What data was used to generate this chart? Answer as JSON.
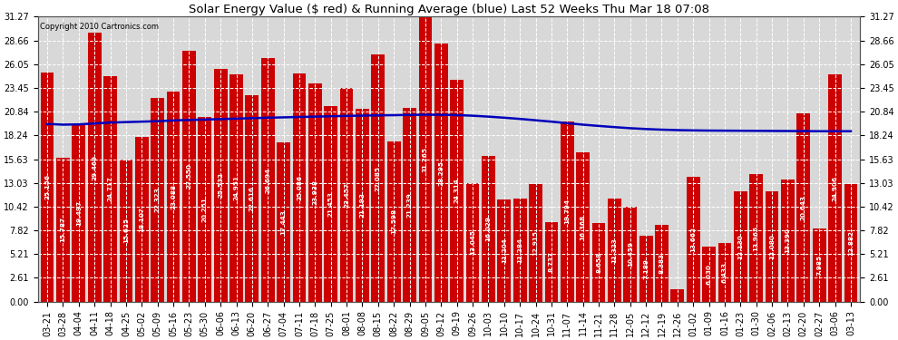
{
  "title": "Solar Energy Value ($ red) & Running Average (blue) Last 52 Weeks Thu Mar 18 07:08",
  "copyright": "Copyright 2010 Cartronics.com",
  "bar_color": "#cc0000",
  "avg_color": "#0000bb",
  "background_color": "#ffffff",
  "plot_bg_color": "#d8d8d8",
  "grid_color": "#ffffff",
  "ylim": [
    0,
    31.27
  ],
  "yticks": [
    0.0,
    2.61,
    5.21,
    7.82,
    10.42,
    13.03,
    15.63,
    18.24,
    20.84,
    23.45,
    26.05,
    28.66,
    31.27
  ],
  "categories": [
    "03-21",
    "03-28",
    "04-04",
    "04-11",
    "04-18",
    "04-25",
    "05-02",
    "05-09",
    "05-16",
    "05-23",
    "05-30",
    "06-06",
    "06-13",
    "06-20",
    "06-27",
    "07-04",
    "07-11",
    "07-18",
    "07-25",
    "08-01",
    "08-08",
    "08-15",
    "08-22",
    "08-29",
    "09-05",
    "09-12",
    "09-19",
    "09-26",
    "10-03",
    "10-10",
    "10-17",
    "10-24",
    "10-31",
    "11-07",
    "11-14",
    "11-21",
    "11-28",
    "12-05",
    "12-12",
    "12-19",
    "12-26",
    "01-02",
    "01-09",
    "01-16",
    "01-23",
    "01-30",
    "02-06",
    "02-13",
    "02-20",
    "02-27",
    "03-06",
    "03-13"
  ],
  "bar_values": [
    25.156,
    15.787,
    19.497,
    29.469,
    24.717,
    15.625,
    18.107,
    22.323,
    23.088,
    27.55,
    20.251,
    25.532,
    24.951,
    22.616,
    26.694,
    17.443,
    25.086,
    23.938,
    21.453,
    23.457,
    21.193,
    27.085,
    17.598,
    21.239,
    31.265,
    28.295,
    24.314,
    13.045,
    16.029,
    11.204,
    11.284,
    12.915,
    8.737,
    19.794,
    16.368,
    8.658,
    11.323,
    10.459,
    7.189,
    8.383,
    1.364,
    13.662,
    6.03,
    6.433,
    12.13,
    13.965,
    12.08,
    13.39,
    20.643,
    7.985,
    24.906,
    12.882
  ],
  "running_avg": [
    19.5,
    19.42,
    19.45,
    19.55,
    19.65,
    19.7,
    19.75,
    19.8,
    19.88,
    19.93,
    19.98,
    20.03,
    20.08,
    20.13,
    20.18,
    20.22,
    20.26,
    20.3,
    20.34,
    20.38,
    20.41,
    20.44,
    20.46,
    20.49,
    20.51,
    20.5,
    20.47,
    20.4,
    20.3,
    20.18,
    20.05,
    19.9,
    19.75,
    19.58,
    19.42,
    19.28,
    19.15,
    19.03,
    18.94,
    18.87,
    18.82,
    18.79,
    18.77,
    18.76,
    18.75,
    18.74,
    18.73,
    18.72,
    18.71,
    18.7,
    18.7,
    18.7
  ]
}
